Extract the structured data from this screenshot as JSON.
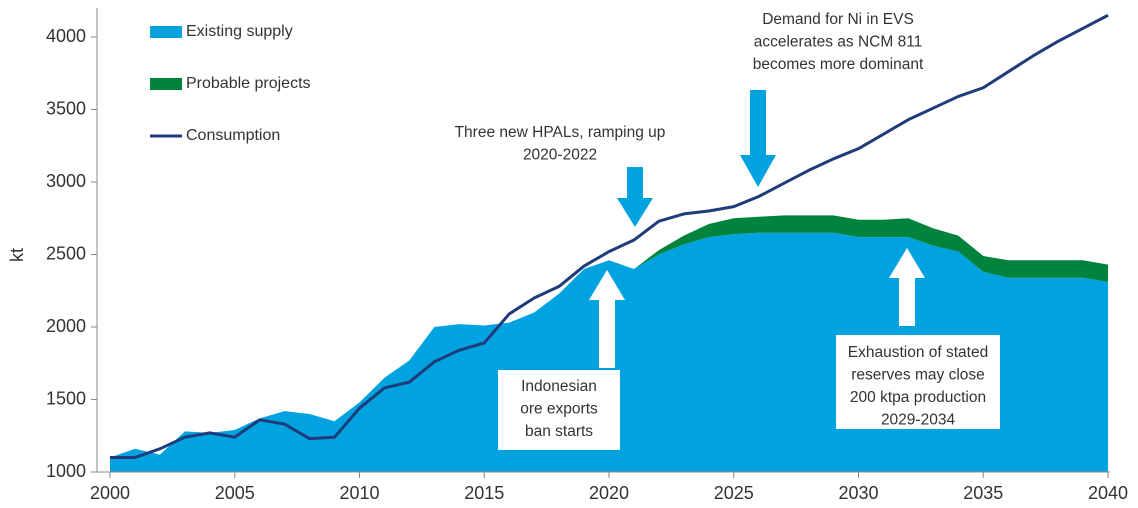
{
  "chart_data": {
    "type": "area",
    "y_label": "kt",
    "x": [
      2000,
      2001,
      2002,
      2003,
      2004,
      2005,
      2006,
      2007,
      2008,
      2009,
      2010,
      2011,
      2012,
      2013,
      2014,
      2015,
      2016,
      2017,
      2018,
      2019,
      2020,
      2021,
      2022,
      2023,
      2024,
      2025,
      2026,
      2027,
      2028,
      2029,
      2030,
      2031,
      2032,
      2033,
      2034,
      2035,
      2036,
      2037,
      2038,
      2039,
      2040
    ],
    "series": [
      {
        "name": "Existing supply",
        "color": "#00a3e0",
        "kind": "area",
        "values": [
          1100,
          1160,
          1120,
          1280,
          1270,
          1290,
          1370,
          1420,
          1400,
          1350,
          1480,
          1650,
          1770,
          2000,
          2020,
          2010,
          2030,
          2100,
          2230,
          2400,
          2460,
          2400,
          2500,
          2570,
          2620,
          2640,
          2650,
          2650,
          2650,
          2650,
          2620,
          2620,
          2620,
          2560,
          2520,
          2380,
          2340,
          2340,
          2340,
          2340,
          2310
        ]
      },
      {
        "name": "Probable projects",
        "color": "#00843d",
        "kind": "area",
        "values": [
          0,
          0,
          0,
          0,
          0,
          0,
          0,
          0,
          0,
          0,
          0,
          0,
          0,
          0,
          0,
          0,
          0,
          0,
          0,
          0,
          0,
          0,
          30,
          60,
          90,
          110,
          110,
          120,
          120,
          120,
          120,
          120,
          130,
          120,
          110,
          110,
          120,
          120,
          120,
          120,
          120
        ]
      },
      {
        "name": "Consumption",
        "color": "#1f3b7a",
        "kind": "line",
        "values": [
          1100,
          1100,
          1160,
          1240,
          1270,
          1240,
          1360,
          1330,
          1230,
          1240,
          1440,
          1580,
          1620,
          1760,
          1840,
          1890,
          2090,
          2200,
          2280,
          2420,
          2520,
          2600,
          2730,
          2780,
          2800,
          2830,
          2900,
          2990,
          3080,
          3160,
          3230,
          3330,
          3430,
          3510,
          3590,
          3650,
          3760,
          3870,
          3970,
          4060,
          4150
        ]
      }
    ],
    "xlim": [
      2000,
      2040
    ],
    "xticks": [
      2000,
      2005,
      2010,
      2015,
      2020,
      2025,
      2030,
      2035,
      2040
    ],
    "ylim": [
      1000,
      4200
    ],
    "yticks": [
      1000,
      1500,
      2000,
      2500,
      3000,
      3500,
      4000
    ],
    "legend": "upper left",
    "annotations": [
      {
        "lines": [
          "Three new HPALs, ramping up",
          "2020-2022"
        ]
      },
      {
        "lines": [
          "Demand for Ni in EVS",
          "accelerates as NCM 811",
          "becomes more dominant"
        ]
      },
      {
        "lines": [
          "Indonesian",
          "ore exports",
          "ban starts"
        ]
      },
      {
        "lines": [
          "Exhaustion of stated",
          "reserves may close",
          "200 ktpa production",
          "2029-2034"
        ]
      }
    ]
  }
}
